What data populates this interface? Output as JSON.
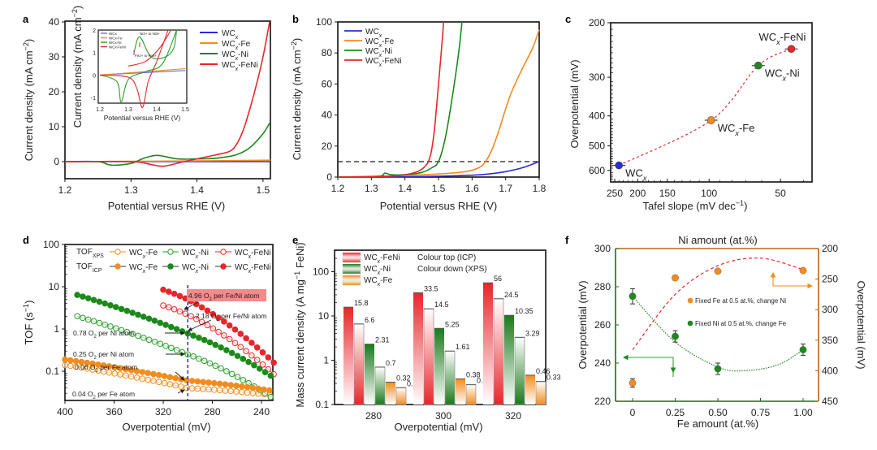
{
  "chart_data": [
    {
      "panel": "a",
      "type": "line",
      "xlabel": "Potential versus RHE (V)",
      "ylabel": "Current density (mA cm^-2)",
      "xlim": [
        1.2,
        1.51
      ],
      "ylim": [
        -5,
        40
      ],
      "xticks": [
        "1.2",
        "1.3",
        "1.4",
        "1.5"
      ],
      "yticks": [
        "0",
        "10",
        "20",
        "30",
        "40"
      ],
      "legend": [
        "WCx",
        "WCx-Fe",
        "WCx-Ni",
        "WCx-FeNi"
      ],
      "legend_position": "top-right",
      "series": [
        {
          "name": "WCx",
          "color": "#2b2bd9",
          "x": [
            1.2,
            1.3,
            1.4,
            1.5,
            1.51
          ],
          "y": [
            0,
            0,
            0,
            0,
            0
          ]
        },
        {
          "name": "WCx-Fe",
          "color": "#f28c1f",
          "x": [
            1.2,
            1.3,
            1.4,
            1.5,
            1.51
          ],
          "y": [
            0,
            0.1,
            0.2,
            0.4,
            0.4
          ]
        },
        {
          "name": "WCx-Ni",
          "color": "#1b8a1b",
          "x": [
            1.2,
            1.25,
            1.27,
            1.3,
            1.32,
            1.34,
            1.37,
            1.4,
            1.43,
            1.46,
            1.48,
            1.5,
            1.51
          ],
          "y": [
            0,
            0,
            -1,
            -0.5,
            1,
            1.8,
            0.8,
            0.8,
            1.0,
            2.0,
            4.0,
            8.0,
            11.0
          ]
        },
        {
          "name": "WCx-FeNi",
          "color": "#e8262b",
          "x": [
            1.2,
            1.3,
            1.33,
            1.35,
            1.38,
            1.4,
            1.43,
            1.45,
            1.46,
            1.47,
            1.48,
            1.49,
            1.5,
            1.51
          ],
          "y": [
            0,
            0,
            -0.8,
            -1.3,
            0,
            0.8,
            2.0,
            3.0,
            5.0,
            9.0,
            15.0,
            22.0,
            30.0,
            40.0
          ]
        }
      ],
      "inset": {
        "xlabel": "Potential versus RHE (V)",
        "ylabel": "Current density (mA cm^-2)",
        "xlim": [
          1.2,
          1.5
        ],
        "ylim": [
          -1.4,
          2
        ],
        "xticks": [
          "1.2",
          "1.3",
          "1.4",
          "1.5"
        ],
        "yticks": [
          "-1",
          "0",
          "1",
          "2"
        ],
        "legend": [
          "WCx",
          "WCx-Fe",
          "WCx-Ni",
          "WCx-FeNi"
        ],
        "annotations": [
          "Ni2+ to Ni3+",
          "Fe2+ to Fe3+"
        ],
        "series": [
          {
            "name": "WCx",
            "color": "#6b6bf0",
            "x": [
              1.2,
              1.5
            ],
            "y": [
              0,
              0.2
            ]
          },
          {
            "name": "WCx-Fe",
            "color": "#f28c1f",
            "x": [
              1.2,
              1.5
            ],
            "y": [
              0,
              0.28
            ]
          },
          {
            "name": "WCx-Ni",
            "color": "#2e9e2e",
            "x": [
              1.2,
              1.26,
              1.275,
              1.3,
              1.36,
              1.42,
              1.47,
              1.32,
              1.34,
              1.38,
              1.43,
              1.46,
              1.47
            ],
            "y": [
              0,
              -0.3,
              -1.2,
              -0.2,
              0.15,
              0.5,
              2.0,
              1.0,
              1.7,
              0.8,
              0.8,
              1.2,
              2.0
            ]
          },
          {
            "name": "WCx-FeNi",
            "color": "#e8262b",
            "x": [
              1.2,
              1.3,
              1.33,
              1.35,
              1.37,
              1.4,
              1.44,
              1.3,
              1.36,
              1.41,
              1.45
            ],
            "y": [
              0,
              -0.1,
              -0.6,
              -1.45,
              -0.3,
              0.6,
              2.0,
              0.4,
              0.6,
              1.2,
              2.0
            ]
          }
        ]
      }
    },
    {
      "panel": "b",
      "type": "line",
      "xlabel": "Potential versus RHE (V)",
      "ylabel": "Current density (mA cm^-2)",
      "xlim": [
        1.2,
        1.8
      ],
      "ylim": [
        0,
        100
      ],
      "xticks": [
        "1.2",
        "1.3",
        "1.4",
        "1.5",
        "1.6",
        "1.7",
        "1.8"
      ],
      "yticks": [
        "0",
        "20",
        "40",
        "60",
        "80",
        "100"
      ],
      "reference_line": {
        "y": 10,
        "style": "dashed"
      },
      "legend": [
        "WCx",
        "WCx-Fe",
        "WCx-Ni",
        "WCx-FeNi"
      ],
      "legend_position": "top-left",
      "series": [
        {
          "name": "WCx",
          "color": "#2b2bd9",
          "x": [
            1.2,
            1.4,
            1.5,
            1.6,
            1.65,
            1.7,
            1.75,
            1.8
          ],
          "y": [
            0,
            0.2,
            0.6,
            1.2,
            2,
            3.5,
            6,
            10
          ]
        },
        {
          "name": "WCx-Fe",
          "color": "#f28c1f",
          "x": [
            1.2,
            1.4,
            1.5,
            1.58,
            1.62,
            1.64,
            1.66,
            1.68,
            1.7,
            1.72,
            1.75,
            1.78,
            1.8
          ],
          "y": [
            0,
            1,
            2,
            3.5,
            6,
            10,
            18,
            30,
            44,
            56,
            70,
            83,
            95
          ]
        },
        {
          "name": "WCx-Ni",
          "color": "#1b8a1b",
          "x": [
            1.2,
            1.32,
            1.34,
            1.36,
            1.4,
            1.45,
            1.48,
            1.5,
            1.52,
            1.54,
            1.56,
            1.57
          ],
          "y": [
            0,
            0.5,
            2.5,
            1.5,
            1.5,
            3,
            6,
            10,
            25,
            50,
            80,
            100
          ]
        },
        {
          "name": "WCx-FeNi",
          "color": "#e8262b",
          "x": [
            1.2,
            1.35,
            1.4,
            1.43,
            1.45,
            1.46,
            1.47,
            1.48,
            1.49,
            1.5,
            1.51,
            1.515
          ],
          "y": [
            0,
            0.5,
            1.5,
            3,
            5,
            7,
            10,
            18,
            35,
            60,
            85,
            100
          ]
        }
      ]
    },
    {
      "panel": "c",
      "type": "scatter",
      "xlabel": "Tafel slope (mV dec^-1)",
      "ylabel": "Overpotential (mV)",
      "xscale": "log-reversed",
      "yscale": "log-reversed",
      "xlim": [
        260,
        35
      ],
      "ylim": [
        200,
        640
      ],
      "xticks": [
        "250",
        "200",
        "150",
        "100",
        "50"
      ],
      "yticks": [
        "200",
        "300",
        "400",
        "500",
        "600"
      ],
      "trend_line": "red dashed",
      "points": [
        {
          "label": "WCx",
          "x": 240,
          "y": 578,
          "color": "#2b2bd9"
        },
        {
          "label": "WCx-Fe",
          "x": 98,
          "y": 413,
          "color": "#f28c1f"
        },
        {
          "label": "WCx-Ni",
          "x": 62,
          "y": 275,
          "color": "#1b8a1b"
        },
        {
          "label": "WCx-FeNi",
          "x": 45,
          "y": 243,
          "color": "#e8262b"
        }
      ]
    },
    {
      "panel": "d",
      "type": "scatter",
      "xlabel": "Overpotential (mV)",
      "ylabel": "TOF (s^-1)",
      "yscale": "log",
      "xlim": [
        400,
        230
      ],
      "ylim": [
        0.02,
        100
      ],
      "xticks": [
        "400",
        "360",
        "320",
        "280",
        "240"
      ],
      "yticks": [
        "0.1",
        "1",
        "10",
        "100"
      ],
      "legend_rows": [
        "TOF_XPS",
        "TOF_ICP"
      ],
      "reference_line": {
        "x": 300,
        "style": "blue dashed"
      },
      "series": [
        {
          "name": "WCx-Fe (XPS)",
          "group": "XPS",
          "color": "#f28c1f",
          "filled": false,
          "x_start": 400,
          "x_end": 230,
          "y_start": 0.14,
          "y_at_300": 0.04,
          "y_end": 0.027
        },
        {
          "name": "WCx-Ni (XPS)",
          "group": "XPS",
          "color": "#2e9e2e",
          "filled": false,
          "x_start": 390,
          "x_end": 230,
          "y_start": 2.0,
          "y_at_300": 0.25,
          "y_end": 0.022
        },
        {
          "name": "WCx-FeNi (XPS)",
          "group": "XPS",
          "color": "#e8262b",
          "filled": false,
          "x_start": 320,
          "x_end": 230,
          "y_start": 3.6,
          "y_at_300": 2.18,
          "y_end": 0.085
        },
        {
          "name": "WCx-Fe (ICP)",
          "group": "ICP",
          "color": "#f28c1f",
          "filled": true,
          "x_start": 400,
          "x_end": 230,
          "y_start": 0.19,
          "y_at_300": 0.06,
          "y_end": 0.034
        },
        {
          "name": "WCx-Ni (ICP)",
          "group": "ICP",
          "color": "#1b8a1b",
          "filled": true,
          "x_start": 390,
          "x_end": 230,
          "y_start": 6.4,
          "y_at_300": 0.78,
          "y_end": 0.07
        },
        {
          "name": "WCx-FeNi (ICP)",
          "group": "ICP",
          "color": "#e8262b",
          "filled": true,
          "x_start": 320,
          "x_end": 230,
          "y_start": 8.5,
          "y_at_300": 4.96,
          "y_end": 0.16
        }
      ],
      "annotations": [
        {
          "text": "4.96 O2 per Fe/Ni atom",
          "highlight": true
        },
        {
          "text": "2.18 O2 per Fe/Ni atom"
        },
        {
          "text": "0.78 O2 per Ni atom"
        },
        {
          "text": "0.25 O2 per Ni atom"
        },
        {
          "text": "0.06 O2 per Fe atom"
        },
        {
          "text": "0.04 O2 per Fe atom"
        }
      ]
    },
    {
      "panel": "e",
      "type": "bar",
      "xlabel": "Overpotential (mV)",
      "ylabel": "Mass current density (A mg^-1 FeNi)",
      "yscale": "log",
      "ylim": [
        0.1,
        300
      ],
      "yticks": [
        "0.1",
        "1",
        "10",
        "100"
      ],
      "categories": [
        "280",
        "300",
        "320"
      ],
      "legend": [
        "WCx-FeNi",
        "WCx-Ni",
        "WCx-Fe"
      ],
      "legend_notes": [
        "Colour top    (ICP)",
        "Colour down (XPS)"
      ],
      "series": [
        {
          "name": "WCx-FeNi (ICP)",
          "color": "#e8262b",
          "style": "colour-top",
          "values": [
            15.8,
            33.5,
            56
          ]
        },
        {
          "name": "WCx-FeNi (XPS)",
          "color": "#e8262b",
          "style": "colour-down",
          "values": [
            6.6,
            14.5,
            24.5
          ]
        },
        {
          "name": "WCx-Ni (ICP)",
          "color": "#1b7a1b",
          "style": "colour-top",
          "values": [
            2.31,
            5.25,
            10.35
          ]
        },
        {
          "name": "WCx-Ni (XPS)",
          "color": "#1b7a1b",
          "style": "colour-down",
          "values": [
            0.7,
            1.61,
            3.29
          ]
        },
        {
          "name": "WCx-Fe (ICP)",
          "color": "#f28c1f",
          "style": "colour-top",
          "values": [
            0.32,
            0.38,
            0.46
          ]
        },
        {
          "name": "WCx-Fe (XPS)",
          "color": "#f28c1f",
          "style": "colour-down",
          "values": [
            0.24,
            0.28,
            0.33
          ]
        }
      ]
    },
    {
      "panel": "f",
      "type": "scatter",
      "xlabel": "Fe amount (at.%)",
      "x2label": "Ni amount (at.%)",
      "ylabel": "Overpotential (mV)",
      "y2label": "Overpotential (mV)",
      "xlim": [
        -0.1,
        1.07
      ],
      "ylim": [
        220,
        300
      ],
      "y2lim": [
        450,
        200
      ],
      "xticks": [
        "0",
        "0.25",
        "0.50",
        "0.75",
        "1.00"
      ],
      "yticks": [
        "220",
        "240",
        "260",
        "280",
        "300"
      ],
      "y2ticks": [
        "200",
        "250",
        "300",
        "350",
        "400",
        "450"
      ],
      "legend": [
        "Fixed Fe at 0.5 at.%, change Ni",
        "Fixed Ni at 0.5 at.%, change Fe"
      ],
      "series": [
        {
          "name": "Fixed Fe at 0.5 at.%, change Ni",
          "axis": "right",
          "color": "#f28c1f",
          "x": [
            0,
            0.25,
            0.5,
            1.0
          ],
          "y": [
            420,
            248,
            237,
            236
          ],
          "err": [
            7,
            4,
            2,
            2
          ]
        },
        {
          "name": "Fixed Ni at 0.5 at.%, change Fe",
          "axis": "left",
          "color": "#1b8a1b",
          "x": [
            0,
            0.25,
            0.5,
            1.0
          ],
          "y": [
            275,
            254,
            237,
            247
          ],
          "err": [
            4,
            3,
            3,
            3
          ]
        }
      ],
      "fits": [
        {
          "color": "#e8262b",
          "style": "dashed",
          "axis": "left",
          "x": [
            0,
            0.25,
            0.5,
            0.75,
            1.0
          ],
          "y": [
            247,
            276,
            291,
            295,
            289
          ]
        },
        {
          "color": "#1b8a1b",
          "style": "dotted",
          "axis": "left",
          "x": [
            0,
            0.25,
            0.5,
            0.65,
            0.85,
            1.0
          ],
          "y": [
            275,
            251,
            238,
            236,
            239,
            247
          ]
        }
      ]
    }
  ],
  "labels": {
    "a": "a",
    "b": "b",
    "c": "c",
    "d": "d",
    "e": "e",
    "f": "f"
  }
}
